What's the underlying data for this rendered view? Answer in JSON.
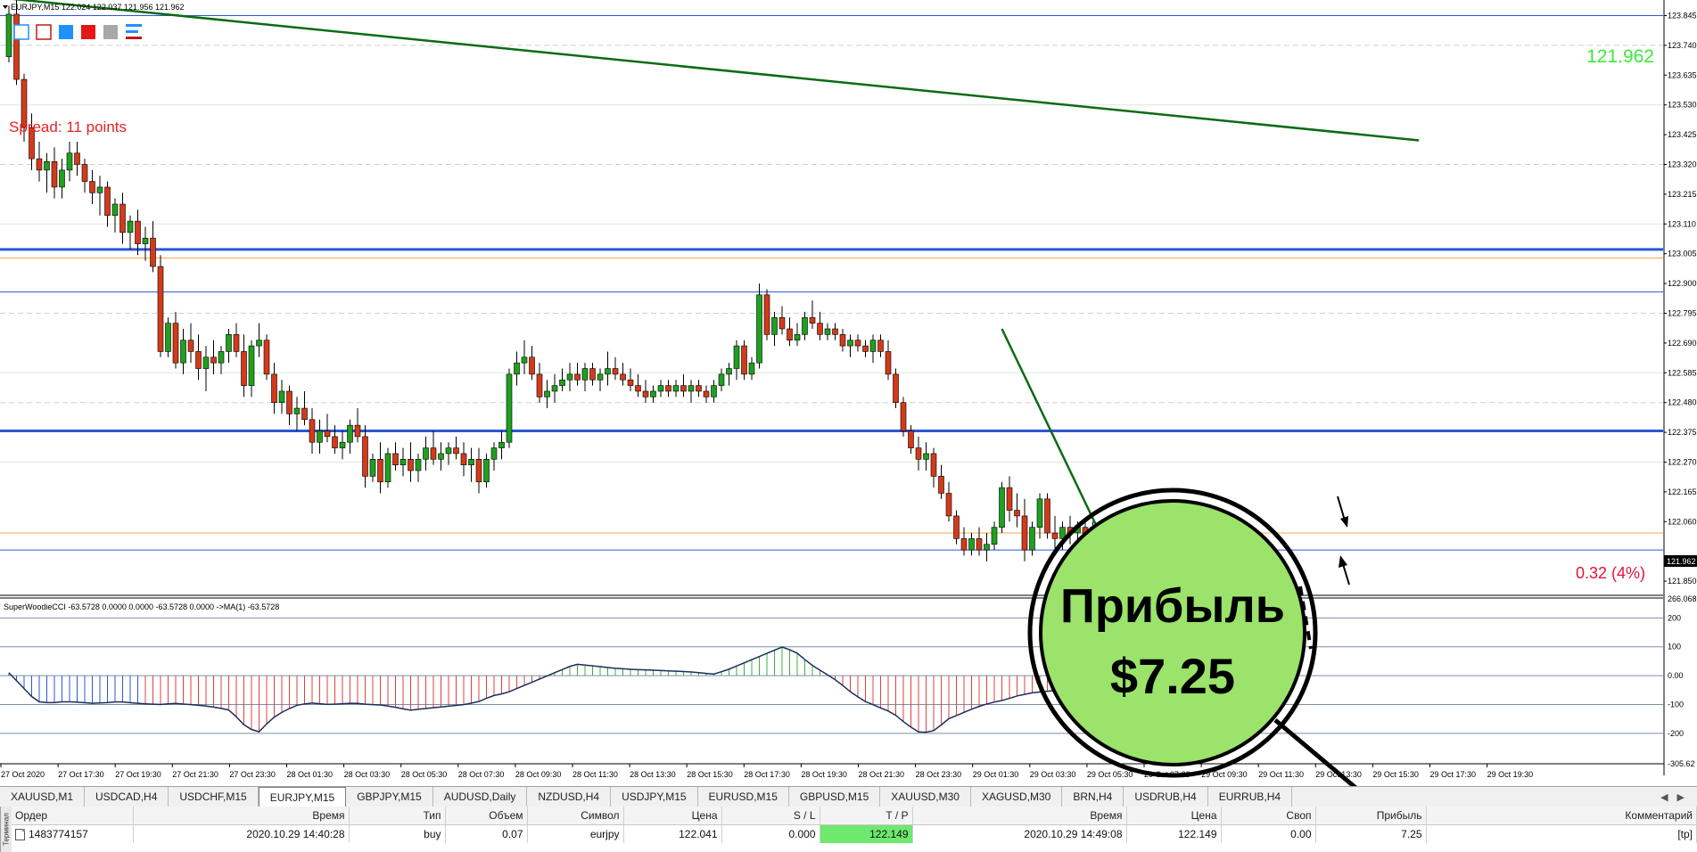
{
  "chart_header": {
    "title": "EURJPY,M15  122.024 122.037 121.956 121.962",
    "price_display": "121.962",
    "spread_label": "Spread: 11 points",
    "profit_pct": "0.32 (4%)",
    "current_price_tag": "121.962"
  },
  "indicator_header": "SuperWoodieCCI -63.5728 0.0000 0.0000 -63.5728 0.0000  ->MA(1) -63.5728",
  "price_axis": [
    "123.845",
    "123.740",
    "123.635",
    "123.530",
    "123.425",
    "123.320",
    "123.215",
    "123.110",
    "123.005",
    "122.900",
    "122.795",
    "122.690",
    "122.585",
    "122.480",
    "122.375",
    "122.270",
    "122.165",
    "122.060",
    "121.850"
  ],
  "cci_axis": [
    "266.068",
    "200",
    "100",
    "0.00",
    "-100",
    "-200",
    "-305.62"
  ],
  "time_axis": [
    "27 Oct 2020",
    "27 Oct 17:30",
    "27 Oct 19:30",
    "27 Oct 21:30",
    "27 Oct 23:30",
    "28 Oct 01:30",
    "28 Oct 03:30",
    "28 Oct 05:30",
    "28 Oct 07:30",
    "28 Oct 09:30",
    "28 Oct 11:30",
    "28 Oct 13:30",
    "28 Oct 15:30",
    "28 Oct 17:30",
    "28 Oct 19:30",
    "28 Oct 21:30",
    "28 Oct 23:30",
    "29 Oct 01:30",
    "29 Oct 03:30",
    "29 Oct 05:30",
    "29 Oct 07:30",
    "29 Oct 09:30",
    "29 Oct 11:30",
    "29 Oct 13:30",
    "29 Oct 15:30",
    "29 Oct 17:30",
    "29 Oct 19:30"
  ],
  "overlay": {
    "line1": "Прибыль",
    "line2": "$7.25",
    "circle_color": "#9be36a"
  },
  "colors": {
    "bull": "#1fa01f",
    "bear": "#d43a1a",
    "level_blue": "#2b57d6",
    "level_orange": "#f4a64a",
    "trend_green": "#0b6b14",
    "price_green": "#3ce83c",
    "profit_red": "#e8123a"
  },
  "chart_data": {
    "type": "candlestick",
    "symbol": "EURJPY",
    "timeframe": "M15",
    "y_range": [
      121.8,
      123.9
    ],
    "ohlc": [
      [
        123.7,
        123.88,
        123.68,
        123.85
      ],
      [
        123.85,
        123.9,
        123.6,
        123.62
      ],
      [
        123.62,
        123.64,
        123.4,
        123.45
      ],
      [
        123.45,
        123.5,
        123.3,
        123.34
      ],
      [
        123.34,
        123.4,
        123.26,
        123.3
      ],
      [
        123.3,
        123.36,
        123.22,
        123.33
      ],
      [
        123.33,
        123.38,
        123.2,
        123.24
      ],
      [
        123.24,
        123.34,
        123.2,
        123.3
      ],
      [
        123.3,
        123.4,
        123.26,
        123.36
      ],
      [
        123.36,
        123.4,
        123.28,
        123.32
      ],
      [
        123.32,
        123.34,
        123.22,
        123.26
      ],
      [
        123.26,
        123.3,
        123.18,
        123.22
      ],
      [
        123.22,
        123.28,
        123.14,
        123.24
      ],
      [
        123.24,
        123.26,
        123.1,
        123.14
      ],
      [
        123.14,
        123.2,
        123.08,
        123.18
      ],
      [
        123.18,
        123.22,
        123.04,
        123.08
      ],
      [
        123.08,
        123.14,
        123.02,
        123.12
      ],
      [
        123.12,
        123.16,
        123.0,
        123.04
      ],
      [
        123.04,
        123.1,
        122.98,
        123.06
      ],
      [
        123.06,
        123.12,
        122.94,
        122.96
      ],
      [
        122.96,
        123.0,
        122.64,
        122.66
      ],
      [
        122.66,
        122.78,
        122.64,
        122.76
      ],
      [
        122.76,
        122.8,
        122.6,
        122.62
      ],
      [
        122.62,
        122.74,
        122.58,
        122.7
      ],
      [
        122.7,
        122.76,
        122.62,
        122.66
      ],
      [
        122.66,
        122.72,
        122.56,
        122.6
      ],
      [
        122.6,
        122.68,
        122.52,
        122.64
      ],
      [
        122.64,
        122.7,
        122.58,
        122.62
      ],
      [
        122.62,
        122.68,
        122.58,
        122.66
      ],
      [
        122.66,
        122.74,
        122.62,
        122.72
      ],
      [
        122.72,
        122.76,
        122.64,
        122.66
      ],
      [
        122.66,
        122.72,
        122.5,
        122.54
      ],
      [
        122.54,
        122.7,
        122.5,
        122.68
      ],
      [
        122.68,
        122.76,
        122.64,
        122.7
      ],
      [
        122.7,
        122.72,
        122.56,
        122.58
      ],
      [
        122.58,
        122.62,
        122.44,
        122.48
      ],
      [
        122.48,
        122.56,
        122.44,
        122.52
      ],
      [
        122.52,
        122.54,
        122.4,
        122.44
      ],
      [
        122.44,
        122.5,
        122.38,
        122.46
      ],
      [
        122.46,
        122.52,
        122.4,
        122.42
      ],
      [
        122.42,
        122.46,
        122.3,
        122.34
      ],
      [
        122.34,
        122.42,
        122.3,
        122.38
      ],
      [
        122.38,
        122.44,
        122.34,
        122.36
      ],
      [
        122.36,
        122.4,
        122.3,
        122.32
      ],
      [
        122.32,
        122.38,
        122.28,
        122.34
      ],
      [
        122.34,
        122.42,
        122.3,
        122.4
      ],
      [
        122.4,
        122.46,
        122.34,
        122.36
      ],
      [
        122.36,
        122.4,
        122.18,
        122.22
      ],
      [
        122.22,
        122.3,
        122.2,
        122.28
      ],
      [
        122.28,
        122.34,
        122.16,
        122.2
      ],
      [
        122.2,
        122.32,
        122.18,
        122.3
      ],
      [
        122.3,
        122.34,
        122.24,
        122.26
      ],
      [
        122.26,
        122.32,
        122.22,
        122.28
      ],
      [
        122.28,
        122.34,
        122.2,
        122.24
      ],
      [
        122.24,
        122.3,
        122.2,
        122.28
      ],
      [
        122.28,
        122.36,
        122.24,
        122.32
      ],
      [
        122.32,
        122.38,
        122.26,
        122.28
      ],
      [
        122.28,
        122.34,
        122.24,
        122.3
      ],
      [
        122.3,
        122.34,
        122.26,
        122.32
      ],
      [
        122.32,
        122.36,
        122.28,
        122.3
      ],
      [
        122.3,
        122.34,
        122.22,
        122.26
      ],
      [
        122.26,
        122.32,
        122.2,
        122.28
      ],
      [
        122.28,
        122.32,
        122.16,
        122.2
      ],
      [
        122.2,
        122.3,
        122.18,
        122.28
      ],
      [
        122.28,
        122.34,
        122.24,
        122.32
      ],
      [
        122.32,
        122.38,
        122.28,
        122.34
      ],
      [
        122.34,
        122.6,
        122.32,
        122.58
      ],
      [
        122.58,
        122.66,
        122.54,
        122.62
      ],
      [
        122.62,
        122.7,
        122.58,
        122.64
      ],
      [
        122.64,
        122.68,
        122.56,
        122.58
      ],
      [
        122.58,
        122.62,
        122.48,
        122.5
      ],
      [
        122.5,
        122.56,
        122.46,
        122.52
      ],
      [
        122.52,
        122.58,
        122.48,
        122.54
      ],
      [
        122.54,
        122.6,
        122.52,
        122.56
      ],
      [
        122.56,
        122.62,
        122.52,
        122.58
      ],
      [
        122.58,
        122.62,
        122.54,
        122.56
      ],
      [
        122.56,
        122.62,
        122.52,
        122.6
      ],
      [
        122.6,
        122.62,
        122.54,
        122.56
      ],
      [
        122.56,
        122.6,
        122.52,
        122.58
      ],
      [
        122.58,
        122.66,
        122.54,
        122.6
      ],
      [
        122.6,
        122.64,
        122.56,
        122.58
      ],
      [
        122.58,
        122.62,
        122.54,
        122.56
      ],
      [
        122.56,
        122.6,
        122.52,
        122.54
      ],
      [
        122.54,
        122.58,
        122.5,
        122.52
      ],
      [
        122.52,
        122.56,
        122.48,
        122.5
      ],
      [
        122.5,
        122.54,
        122.48,
        122.52
      ],
      [
        122.52,
        122.56,
        122.5,
        122.54
      ],
      [
        122.54,
        122.56,
        122.5,
        122.52
      ],
      [
        122.52,
        122.56,
        122.5,
        122.54
      ],
      [
        122.54,
        122.58,
        122.5,
        122.52
      ],
      [
        122.52,
        122.56,
        122.48,
        122.54
      ],
      [
        122.54,
        122.56,
        122.5,
        122.52
      ],
      [
        122.52,
        122.54,
        122.48,
        122.5
      ],
      [
        122.5,
        122.56,
        122.48,
        122.54
      ],
      [
        122.54,
        122.6,
        122.52,
        122.58
      ],
      [
        122.58,
        122.62,
        122.54,
        122.6
      ],
      [
        122.6,
        122.7,
        122.56,
        122.68
      ],
      [
        122.68,
        122.7,
        122.56,
        122.58
      ],
      [
        122.58,
        122.64,
        122.56,
        122.62
      ],
      [
        122.62,
        122.9,
        122.6,
        122.86
      ],
      [
        122.86,
        122.88,
        122.7,
        122.72
      ],
      [
        122.72,
        122.8,
        122.68,
        122.78
      ],
      [
        122.78,
        122.82,
        122.72,
        122.74
      ],
      [
        122.74,
        122.78,
        122.68,
        122.7
      ],
      [
        122.7,
        122.76,
        122.68,
        122.72
      ],
      [
        122.72,
        122.8,
        122.7,
        122.78
      ],
      [
        122.78,
        122.84,
        122.74,
        122.76
      ],
      [
        122.76,
        122.8,
        122.7,
        122.72
      ],
      [
        122.72,
        122.76,
        122.7,
        122.74
      ],
      [
        122.74,
        122.76,
        122.7,
        122.72
      ],
      [
        122.72,
        122.74,
        122.66,
        122.68
      ],
      [
        122.68,
        122.72,
        122.64,
        122.7
      ],
      [
        122.7,
        122.72,
        122.66,
        122.68
      ],
      [
        122.68,
        122.7,
        122.64,
        122.66
      ],
      [
        122.66,
        122.72,
        122.62,
        122.7
      ],
      [
        122.7,
        122.72,
        122.64,
        122.66
      ],
      [
        122.66,
        122.7,
        122.56,
        122.58
      ],
      [
        122.58,
        122.6,
        122.46,
        122.48
      ],
      [
        122.48,
        122.5,
        122.36,
        122.38
      ],
      [
        122.38,
        122.4,
        122.3,
        122.32
      ],
      [
        122.32,
        122.36,
        122.24,
        122.28
      ],
      [
        122.28,
        122.34,
        122.24,
        122.3
      ],
      [
        122.3,
        122.32,
        122.18,
        122.22
      ],
      [
        122.22,
        122.26,
        122.14,
        122.16
      ],
      [
        122.16,
        122.2,
        122.06,
        122.08
      ],
      [
        122.08,
        122.1,
        121.98,
        122.0
      ],
      [
        122.0,
        122.04,
        121.94,
        121.96
      ],
      [
        121.96,
        122.02,
        121.94,
        122.0
      ],
      [
        122.0,
        122.04,
        121.94,
        121.96
      ],
      [
        121.96,
        122.02,
        121.92,
        121.98
      ],
      [
        121.98,
        122.06,
        121.96,
        122.04
      ],
      [
        122.04,
        122.2,
        122.02,
        122.18
      ],
      [
        122.18,
        122.22,
        122.06,
        122.1
      ],
      [
        122.1,
        122.16,
        122.04,
        122.08
      ],
      [
        122.08,
        122.14,
        121.92,
        121.96
      ],
      [
        121.96,
        122.06,
        121.94,
        122.04
      ],
      [
        122.04,
        122.16,
        122.0,
        122.14
      ],
      [
        122.14,
        122.16,
        122.0,
        122.02
      ],
      [
        122.02,
        122.08,
        121.96,
        122.0
      ],
      [
        122.0,
        122.06,
        121.96,
        122.04
      ],
      [
        122.04,
        122.08,
        121.98,
        122.02
      ],
      [
        122.02,
        122.06,
        121.98,
        122.04
      ],
      [
        122.04,
        122.06,
        121.98,
        122.0
      ],
      [
        122.0,
        122.06,
        121.96,
        122.04
      ],
      [
        122.04,
        122.06,
        121.96,
        121.96
      ]
    ],
    "horizontal_levels": [
      {
        "price": 123.845,
        "color": "blue",
        "width": 1
      },
      {
        "price": 123.02,
        "color": "blue",
        "width": 3
      },
      {
        "price": 122.99,
        "color": "orange",
        "width": 1
      },
      {
        "price": 122.87,
        "color": "blue",
        "width": 1
      },
      {
        "price": 122.38,
        "color": "blue",
        "width": 3
      },
      {
        "price": 122.02,
        "color": "orange",
        "width": 1
      },
      {
        "price": 121.96,
        "color": "blue",
        "width": 1
      }
    ],
    "trendlines": [
      {
        "from_bar": 0,
        "from_price": 123.905,
        "to_bar": 186,
        "to_price": 123.405
      },
      {
        "from_bar": 131,
        "from_price": 122.74,
        "to_bar": 145,
        "to_price": 121.96
      },
      {
        "from_bar": 146,
        "from_price": 121.94,
        "to_bar": 155,
        "to_price": 122.04
      }
    ],
    "cci_values": [
      10,
      -40,
      -90,
      -95,
      -90,
      -92,
      -96,
      -94,
      -90,
      -95,
      -98,
      -100,
      -96,
      -100,
      -104,
      -110,
      -120,
      -170,
      -200,
      -150,
      -120,
      -100,
      -95,
      -100,
      -98,
      -95,
      -100,
      -102,
      -110,
      -120,
      -115,
      -110,
      -105,
      -100,
      -90,
      -70,
      -60,
      -40,
      -20,
      0,
      20,
      40,
      35,
      30,
      25,
      22,
      20,
      18,
      16,
      14,
      10,
      5,
      20,
      40,
      60,
      80,
      100,
      80,
      40,
      10,
      -20,
      -60,
      -90,
      -110,
      -130,
      -170,
      -200,
      -190,
      -150,
      -130,
      -110,
      -95,
      -85,
      -70,
      -60,
      -55,
      -50,
      -48,
      -46,
      -45
    ]
  },
  "tabs": [
    "XAUUSD,M1",
    "USDCAD,H4",
    "USDCHF,M15",
    "EURJPY,M15",
    "GBPJPY,M15",
    "AUDUSD,Daily",
    "NZDUSD,H4",
    "USDJPY,M15",
    "EURUSD,M15",
    "GBPUSD,M15",
    "XAUUSD,M30",
    "XAGUSD,M30",
    "BRN,H4",
    "USDRUB,H4",
    "EURRUB,H4"
  ],
  "active_tab": "EURJPY,M15",
  "orders": {
    "side_label": "Терминал",
    "headers": [
      "Ордер",
      "Время",
      "Тип",
      "Объем",
      "Символ",
      "Цена",
      "S / L",
      "T / P",
      "Время",
      "Цена",
      "Своп",
      "Прибыль",
      "Комментарий"
    ],
    "rows": [
      [
        "1483774157",
        "2020.10.29 14:40:28",
        "buy",
        "0.07",
        "eurjpy",
        "122.041",
        "0.000",
        "122.149",
        "2020.10.29 14:49:08",
        "122.149",
        "0.00",
        "7.25",
        "[tp]"
      ]
    ]
  }
}
